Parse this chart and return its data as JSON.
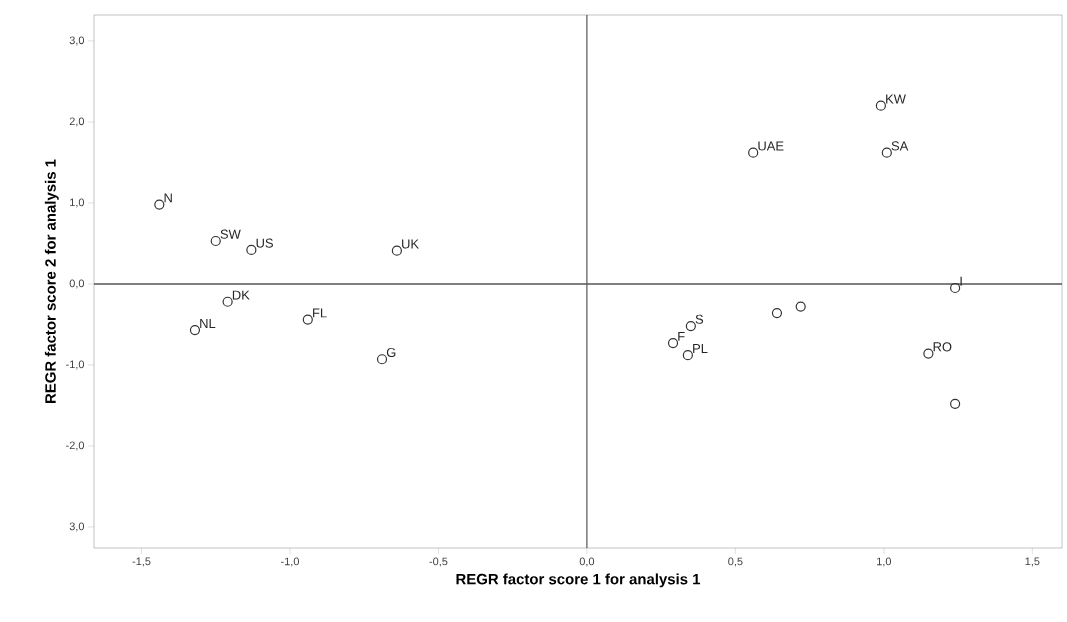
{
  "chart_data": {
    "type": "scatter",
    "xlabel": "REGR factor score   1 for analysis 1",
    "ylabel": "REGR factor score   2 for analysis 1",
    "x": [
      -1.44,
      -1.25,
      -1.13,
      -0.64,
      -1.21,
      -1.32,
      -0.94,
      -0.69,
      0.56,
      0.99,
      1.01,
      1.24,
      0.64,
      0.72,
      0.29,
      0.35,
      0.34,
      1.15,
      1.24
    ],
    "values": [
      0.98,
      0.53,
      0.42,
      0.41,
      -0.22,
      -0.57,
      -0.44,
      -0.93,
      1.62,
      2.2,
      1.62,
      -0.05,
      -0.36,
      -0.28,
      -0.73,
      -0.52,
      -0.88,
      -0.86,
      -1.48
    ],
    "color": "#333333",
    "marker": "circle",
    "xlim": [
      -1.66,
      1.6
    ],
    "ylim": [
      -3.26,
      3.32
    ],
    "xticks": [
      {
        "value": -1.5,
        "label": "-1,5"
      },
      {
        "value": -1,
        "label": "-1,0"
      },
      {
        "value": -0.5,
        "label": "-0,5"
      },
      {
        "value": 0,
        "label": "0,0"
      },
      {
        "value": 0.5,
        "label": "0,5"
      },
      {
        "value": 1,
        "label": "1,0"
      },
      {
        "value": 1.5,
        "label": "1,5"
      }
    ],
    "yticks": [
      {
        "value": -3,
        "label": "3,0"
      },
      {
        "value": -2,
        "label": "-2,0"
      },
      {
        "value": -1,
        "label": "-1,0"
      },
      {
        "value": 0,
        "label": "0,0"
      },
      {
        "value": 1,
        "label": "1,0"
      },
      {
        "value": 2,
        "label": "2,0"
      },
      {
        "value": 3,
        "label": "3,0"
      }
    ],
    "ref_lines": [
      {
        "axis": "x",
        "value": 0,
        "color": "#333333"
      },
      {
        "axis": "y",
        "value": 0,
        "color": "#555555"
      }
    ],
    "annotations": [
      {
        "text": "N",
        "x": -1.44,
        "y": 0.98
      },
      {
        "text": "SW",
        "x": -1.25,
        "y": 0.53
      },
      {
        "text": "US",
        "x": -1.13,
        "y": 0.42
      },
      {
        "text": "UK",
        "x": -0.64,
        "y": 0.41
      },
      {
        "text": "DK",
        "x": -1.21,
        "y": -0.22
      },
      {
        "text": "NL",
        "x": -1.32,
        "y": -0.57
      },
      {
        "text": "FL",
        "x": -0.94,
        "y": -0.44
      },
      {
        "text": "G",
        "x": -0.69,
        "y": -0.93
      },
      {
        "text": "UAE",
        "x": 0.56,
        "y": 1.62
      },
      {
        "text": "KW",
        "x": 0.99,
        "y": 2.2
      },
      {
        "text": "SA",
        "x": 1.01,
        "y": 1.62
      },
      {
        "text": "I",
        "x": 1.24,
        "y": -0.05
      },
      {
        "text": "S",
        "x": 0.35,
        "y": -0.52
      },
      {
        "text": "F",
        "x": 0.29,
        "y": -0.73
      },
      {
        "text": "PL",
        "x": 0.34,
        "y": -0.88
      },
      {
        "text": "RO",
        "x": 1.15,
        "y": -0.86
      }
    ]
  }
}
